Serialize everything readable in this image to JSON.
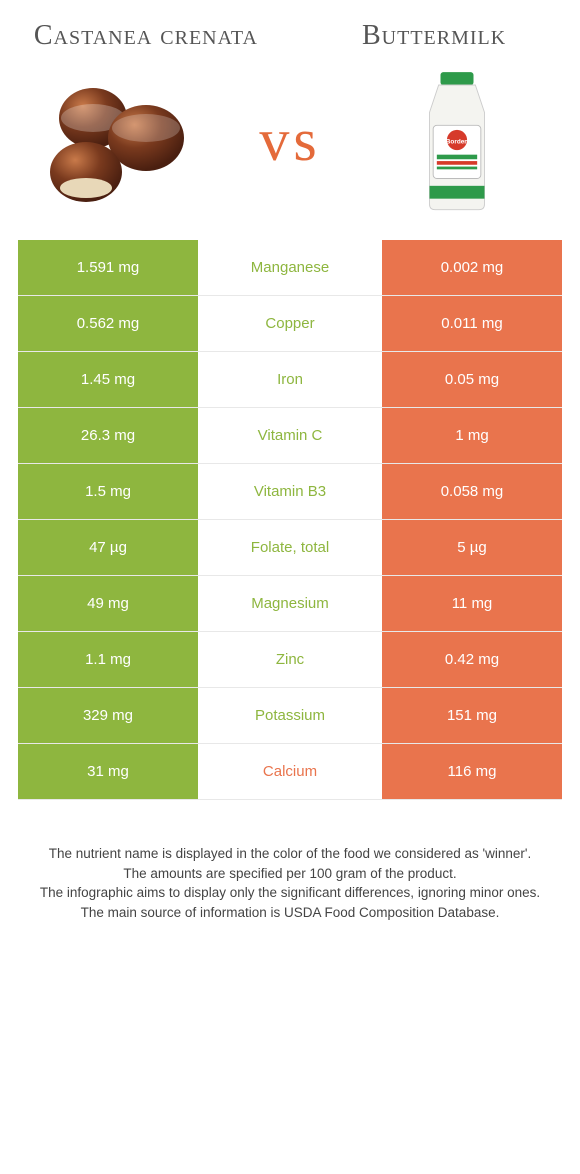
{
  "colors": {
    "left": "#8eb63f",
    "right": "#e9744d",
    "leftFaint": "#fbfdf7",
    "rightFaint": "#fdf7f4",
    "nameWinLeft": "#8eb63f",
    "nameWinRight": "#e9744d"
  },
  "header": {
    "leftTitle": "Castanea crenata",
    "rightTitle": "Buttermilk",
    "vs": "vs"
  },
  "rows": [
    {
      "name": "Manganese",
      "left": "1.591 mg",
      "right": "0.002 mg",
      "winner": "left"
    },
    {
      "name": "Copper",
      "left": "0.562 mg",
      "right": "0.011 mg",
      "winner": "left"
    },
    {
      "name": "Iron",
      "left": "1.45 mg",
      "right": "0.05 mg",
      "winner": "left"
    },
    {
      "name": "Vitamin C",
      "left": "26.3 mg",
      "right": "1 mg",
      "winner": "left"
    },
    {
      "name": "Vitamin B3",
      "left": "1.5 mg",
      "right": "0.058 mg",
      "winner": "left"
    },
    {
      "name": "Folate, total",
      "left": "47 µg",
      "right": "5 µg",
      "winner": "left"
    },
    {
      "name": "Magnesium",
      "left": "49 mg",
      "right": "11 mg",
      "winner": "left"
    },
    {
      "name": "Zinc",
      "left": "1.1 mg",
      "right": "0.42 mg",
      "winner": "left"
    },
    {
      "name": "Potassium",
      "left": "329 mg",
      "right": "151 mg",
      "winner": "left"
    },
    {
      "name": "Calcium",
      "left": "31 mg",
      "right": "116 mg",
      "winner": "right"
    }
  ],
  "footnotes": [
    "The nutrient name is displayed in the color of the food we considered as 'winner'.",
    "The amounts are specified per 100 gram of the product.",
    "The infographic aims to display only the significant differences, ignoring minor ones.",
    "The main source of information is USDA Food Composition Database."
  ]
}
